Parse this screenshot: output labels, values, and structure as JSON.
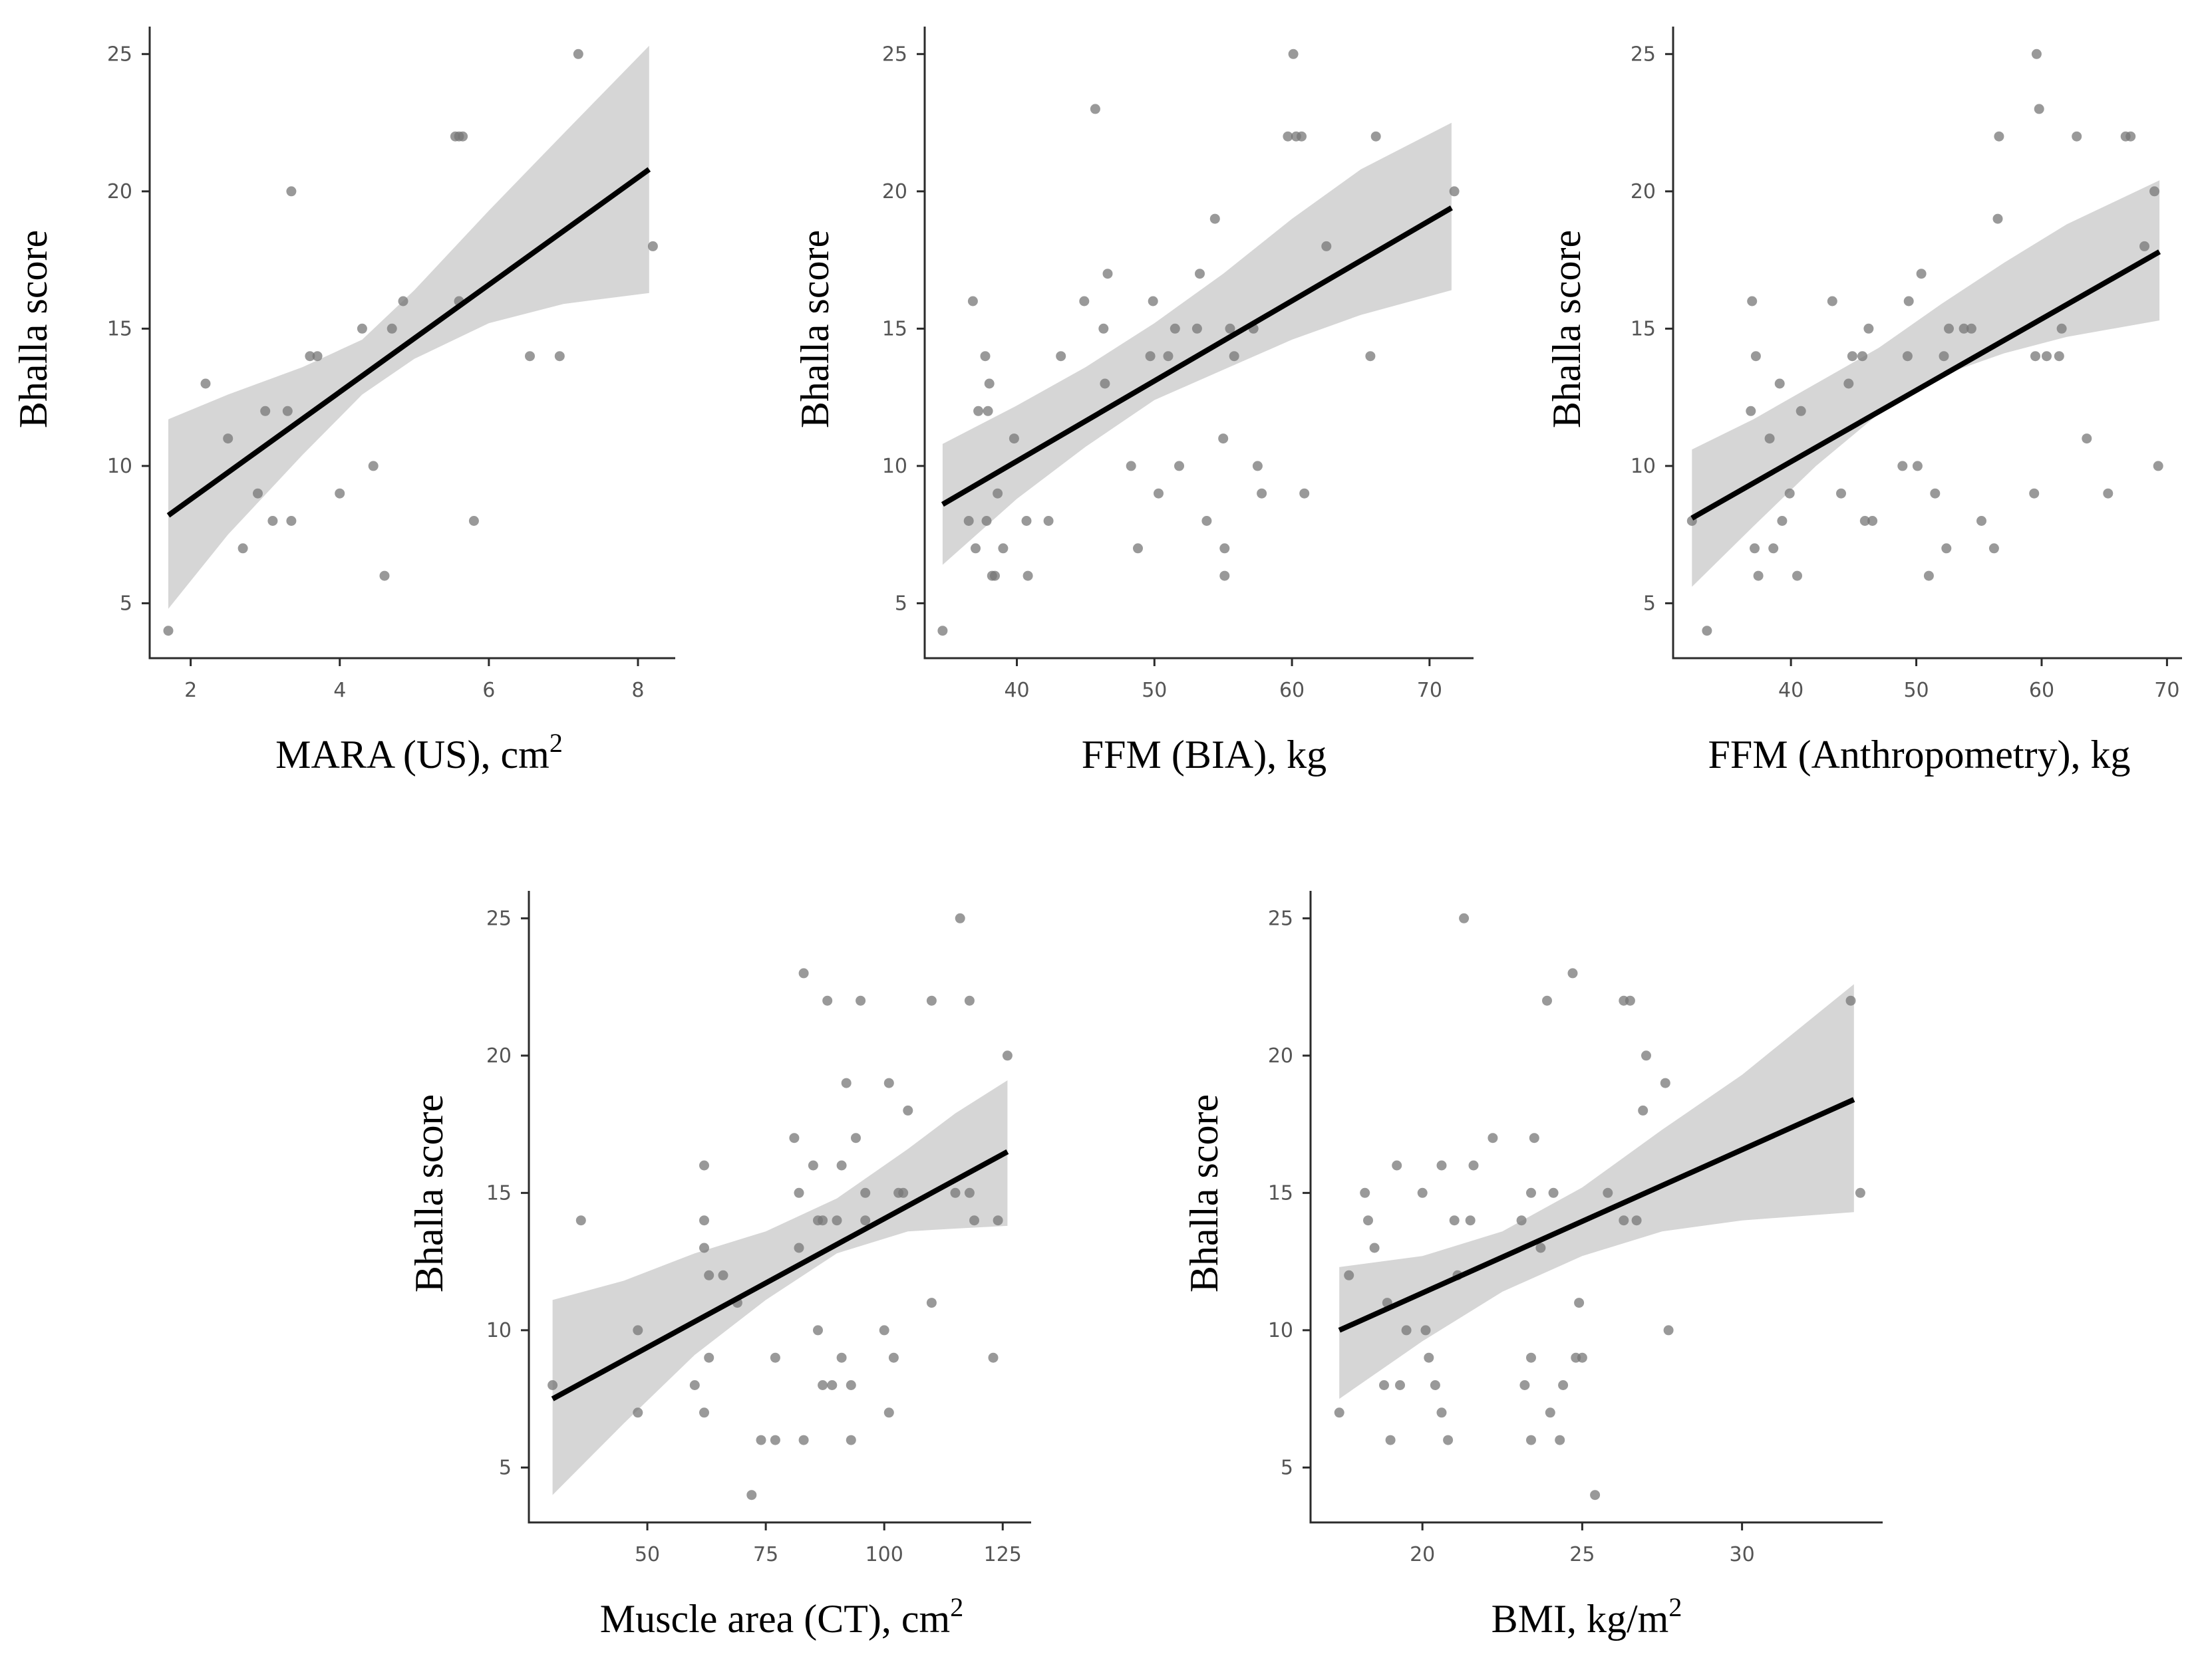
{
  "figure_colors": {
    "point": "#777777",
    "line": "#000000",
    "band": "#d6d6d6",
    "axis": "#2b2b2b"
  },
  "chart_data": [
    {
      "id": "mara",
      "type": "scatter",
      "xlabel": "MARA (US), cm",
      "xlabel_sup": "2",
      "ylabel": "Bhalla score",
      "xlim": [
        1.45,
        8.5
      ],
      "ylim": [
        3,
        26
      ],
      "xticks": [
        2,
        4,
        6,
        8
      ],
      "yticks": [
        5,
        10,
        15,
        20,
        25
      ],
      "points": [
        [
          1.7,
          4
        ],
        [
          2.2,
          13
        ],
        [
          2.5,
          11
        ],
        [
          2.7,
          7
        ],
        [
          2.9,
          9
        ],
        [
          3.0,
          12
        ],
        [
          3.1,
          8
        ],
        [
          3.3,
          12
        ],
        [
          3.35,
          8
        ],
        [
          3.35,
          20
        ],
        [
          3.6,
          14
        ],
        [
          3.7,
          14
        ],
        [
          4.0,
          9
        ],
        [
          4.3,
          15
        ],
        [
          4.45,
          10
        ],
        [
          4.6,
          6
        ],
        [
          4.7,
          15
        ],
        [
          4.85,
          16
        ],
        [
          5.6,
          16
        ],
        [
          5.55,
          22
        ],
        [
          5.6,
          22
        ],
        [
          5.65,
          22
        ],
        [
          5.8,
          8
        ],
        [
          6.55,
          14
        ],
        [
          6.95,
          14
        ],
        [
          7.2,
          25
        ],
        [
          8.2,
          18
        ]
      ],
      "fit": {
        "x0": 1.7,
        "y0": 8.2,
        "x1": 8.15,
        "y1": 20.8
      },
      "band": [
        [
          1.7,
          4.8,
          11.7
        ],
        [
          2.5,
          7.5,
          12.6
        ],
        [
          3.5,
          10.4,
          13.6
        ],
        [
          4.3,
          12.6,
          14.6
        ],
        [
          5.0,
          13.9,
          16.4
        ],
        [
          6.0,
          15.2,
          19.3
        ],
        [
          7.0,
          15.9,
          22.1
        ],
        [
          8.15,
          16.3,
          25.3
        ]
      ]
    },
    {
      "id": "ffm-bia",
      "type": "scatter",
      "xlabel": "FFM (BIA), kg",
      "xlabel_sup": "",
      "ylabel": "Bhalla score",
      "xlim": [
        33.3,
        73.2
      ],
      "ylim": [
        3,
        26
      ],
      "xticks": [
        40,
        50,
        60,
        70
      ],
      "yticks": [
        5,
        10,
        15,
        20,
        25
      ],
      "points": [
        [
          34.6,
          4
        ],
        [
          36.5,
          8
        ],
        [
          36.8,
          16
        ],
        [
          37.0,
          7
        ],
        [
          37.2,
          12
        ],
        [
          37.7,
          14
        ],
        [
          37.9,
          12
        ],
        [
          38.0,
          13
        ],
        [
          37.8,
          8
        ],
        [
          38.2,
          6
        ],
        [
          38.4,
          6
        ],
        [
          38.6,
          9
        ],
        [
          39.0,
          7
        ],
        [
          39.8,
          11
        ],
        [
          40.7,
          8
        ],
        [
          40.8,
          6
        ],
        [
          42.3,
          8
        ],
        [
          43.2,
          14
        ],
        [
          44.9,
          16
        ],
        [
          45.7,
          23
        ],
        [
          46.3,
          15
        ],
        [
          46.4,
          13
        ],
        [
          46.6,
          17
        ],
        [
          48.3,
          10
        ],
        [
          48.8,
          7
        ],
        [
          49.7,
          14
        ],
        [
          49.9,
          16
        ],
        [
          50.3,
          9
        ],
        [
          51.0,
          14
        ],
        [
          51.5,
          15
        ],
        [
          51.8,
          10
        ],
        [
          53.1,
          15
        ],
        [
          53.3,
          17
        ],
        [
          53.8,
          8
        ],
        [
          54.4,
          19
        ],
        [
          55.0,
          11
        ],
        [
          55.1,
          7
        ],
        [
          55.1,
          6
        ],
        [
          55.5,
          15
        ],
        [
          55.8,
          14
        ],
        [
          57.2,
          15
        ],
        [
          57.5,
          10
        ],
        [
          57.8,
          9
        ],
        [
          59.7,
          22
        ],
        [
          60.1,
          25
        ],
        [
          60.3,
          22
        ],
        [
          60.7,
          22
        ],
        [
          60.9,
          9
        ],
        [
          62.5,
          18
        ],
        [
          65.7,
          14
        ],
        [
          66.1,
          22
        ],
        [
          71.8,
          20
        ]
      ],
      "fit": {
        "x0": 34.6,
        "y0": 8.6,
        "x1": 71.6,
        "y1": 19.4
      },
      "band": [
        [
          34.6,
          6.4,
          10.8
        ],
        [
          40.0,
          8.8,
          12.2
        ],
        [
          45.0,
          10.7,
          13.6
        ],
        [
          50.0,
          12.4,
          15.2
        ],
        [
          55.0,
          13.5,
          17.0
        ],
        [
          60.0,
          14.6,
          19.0
        ],
        [
          65.0,
          15.5,
          20.8
        ],
        [
          71.6,
          16.4,
          22.5
        ]
      ]
    },
    {
      "id": "ffm-anthro",
      "type": "scatter",
      "xlabel": "FFM (Anthropometry), kg",
      "xlabel_sup": "",
      "ylabel": "Bhalla score",
      "xlim": [
        30.6,
        71.2
      ],
      "ylim": [
        3,
        26
      ],
      "xticks": [
        40,
        50,
        60,
        70
      ],
      "yticks": [
        5,
        10,
        15,
        20,
        25
      ],
      "points": [
        [
          32.1,
          8
        ],
        [
          33.3,
          4
        ],
        [
          36.8,
          12
        ],
        [
          36.9,
          16
        ],
        [
          37.1,
          7
        ],
        [
          37.2,
          14
        ],
        [
          37.4,
          6
        ],
        [
          38.3,
          11
        ],
        [
          38.6,
          7
        ],
        [
          39.1,
          13
        ],
        [
          39.3,
          8
        ],
        [
          39.9,
          9
        ],
        [
          40.5,
          6
        ],
        [
          40.8,
          12
        ],
        [
          43.3,
          16
        ],
        [
          44.0,
          9
        ],
        [
          44.6,
          13
        ],
        [
          44.9,
          14
        ],
        [
          45.7,
          14
        ],
        [
          45.9,
          8
        ],
        [
          46.2,
          15
        ],
        [
          46.5,
          8
        ],
        [
          48.9,
          10
        ],
        [
          49.3,
          14
        ],
        [
          49.4,
          16
        ],
        [
          50.1,
          10
        ],
        [
          50.4,
          17
        ],
        [
          51.0,
          6
        ],
        [
          51.5,
          9
        ],
        [
          52.2,
          14
        ],
        [
          52.4,
          7
        ],
        [
          52.6,
          15
        ],
        [
          53.8,
          15
        ],
        [
          54.4,
          15
        ],
        [
          55.2,
          8
        ],
        [
          56.2,
          7
        ],
        [
          56.5,
          19
        ],
        [
          56.6,
          22
        ],
        [
          59.4,
          9
        ],
        [
          59.5,
          14
        ],
        [
          59.6,
          25
        ],
        [
          59.8,
          23
        ],
        [
          60.4,
          14
        ],
        [
          61.6,
          15
        ],
        [
          61.4,
          14
        ],
        [
          62.8,
          22
        ],
        [
          63.6,
          11
        ],
        [
          65.3,
          9
        ],
        [
          66.7,
          22
        ],
        [
          67.1,
          22
        ],
        [
          68.2,
          18
        ],
        [
          69.0,
          20
        ],
        [
          69.3,
          10
        ]
      ],
      "fit": {
        "x0": 32.1,
        "y0": 8.1,
        "x1": 69.4,
        "y1": 17.8
      },
      "band": [
        [
          32.1,
          5.6,
          10.6
        ],
        [
          37.0,
          7.8,
          11.7
        ],
        [
          42.0,
          10.0,
          13.0
        ],
        [
          47.0,
          11.9,
          14.3
        ],
        [
          52.0,
          13.3,
          15.9
        ],
        [
          57.0,
          14.1,
          17.4
        ],
        [
          62.0,
          14.7,
          18.8
        ],
        [
          69.4,
          15.3,
          20.4
        ]
      ]
    },
    {
      "id": "muscle-ct",
      "type": "scatter",
      "xlabel": "Muscle area (CT), cm",
      "xlabel_sup": "2",
      "ylabel": "Bhalla score",
      "xlim": [
        25,
        131
      ],
      "ylim": [
        3,
        26
      ],
      "xticks": [
        50,
        75,
        100,
        125
      ],
      "yticks": [
        5,
        10,
        15,
        20,
        25
      ],
      "points": [
        [
          30,
          8
        ],
        [
          36,
          14
        ],
        [
          48,
          10
        ],
        [
          48,
          7
        ],
        [
          60,
          8
        ],
        [
          62,
          13
        ],
        [
          62,
          14
        ],
        [
          62,
          7
        ],
        [
          62,
          16
        ],
        [
          63,
          9
        ],
        [
          63,
          12
        ],
        [
          66,
          12
        ],
        [
          69,
          11
        ],
        [
          72,
          4
        ],
        [
          74,
          6
        ],
        [
          77,
          6
        ],
        [
          77,
          9
        ],
        [
          81,
          17
        ],
        [
          82,
          13
        ],
        [
          82,
          15
        ],
        [
          83,
          6
        ],
        [
          83,
          23
        ],
        [
          85,
          16
        ],
        [
          86,
          10
        ],
        [
          86,
          14
        ],
        [
          87,
          14
        ],
        [
          87,
          8
        ],
        [
          88,
          22
        ],
        [
          89,
          8
        ],
        [
          90,
          14
        ],
        [
          91,
          9
        ],
        [
          91,
          16
        ],
        [
          92,
          19
        ],
        [
          93,
          6
        ],
        [
          93,
          8
        ],
        [
          94,
          17
        ],
        [
          95,
          22
        ],
        [
          96,
          15
        ],
        [
          96,
          14
        ],
        [
          100,
          10
        ],
        [
          101,
          7
        ],
        [
          101,
          19
        ],
        [
          102,
          9
        ],
        [
          103,
          15
        ],
        [
          104,
          15
        ],
        [
          105,
          18
        ],
        [
          110,
          22
        ],
        [
          110,
          11
        ],
        [
          115,
          15
        ],
        [
          116,
          25
        ],
        [
          118,
          22
        ],
        [
          118,
          15
        ],
        [
          119,
          14
        ],
        [
          123,
          9
        ],
        [
          124,
          14
        ],
        [
          126,
          20
        ]
      ],
      "fit": {
        "x0": 30,
        "y0": 7.5,
        "x1": 126,
        "y1": 16.5
      },
      "band": [
        [
          30,
          4.0,
          11.1
        ],
        [
          45,
          6.6,
          11.8
        ],
        [
          60,
          9.1,
          12.8
        ],
        [
          75,
          11.1,
          13.6
        ],
        [
          90,
          12.8,
          14.8
        ],
        [
          105,
          13.6,
          16.6
        ],
        [
          115,
          13.7,
          17.9
        ],
        [
          126,
          13.8,
          19.1
        ]
      ]
    },
    {
      "id": "bmi",
      "type": "scatter",
      "xlabel": "BMI, kg/m",
      "xlabel_sup": "2",
      "ylabel": "Bhalla score",
      "xlim": [
        16.5,
        34.4
      ],
      "ylim": [
        3,
        26
      ],
      "xticks": [
        20,
        25,
        30
      ],
      "yticks": [
        5,
        10,
        15,
        20,
        25
      ],
      "points": [
        [
          17.4,
          7
        ],
        [
          17.7,
          12
        ],
        [
          18.2,
          15
        ],
        [
          18.3,
          14
        ],
        [
          18.5,
          13
        ],
        [
          18.8,
          8
        ],
        [
          18.9,
          11
        ],
        [
          19.0,
          6
        ],
        [
          19.2,
          16
        ],
        [
          19.3,
          8
        ],
        [
          19.5,
          10
        ],
        [
          20.0,
          15
        ],
        [
          20.1,
          10
        ],
        [
          20.2,
          9
        ],
        [
          20.4,
          8
        ],
        [
          20.6,
          7
        ],
        [
          20.6,
          16
        ],
        [
          20.8,
          6
        ],
        [
          21.0,
          14
        ],
        [
          21.1,
          12
        ],
        [
          21.3,
          25
        ],
        [
          21.5,
          14
        ],
        [
          21.6,
          16
        ],
        [
          22.2,
          17
        ],
        [
          23.1,
          14
        ],
        [
          23.2,
          8
        ],
        [
          23.4,
          9
        ],
        [
          23.4,
          15
        ],
        [
          23.4,
          6
        ],
        [
          23.5,
          17
        ],
        [
          23.7,
          13
        ],
        [
          23.9,
          22
        ],
        [
          24.0,
          7
        ],
        [
          24.1,
          15
        ],
        [
          24.3,
          6
        ],
        [
          24.4,
          8
        ],
        [
          24.7,
          23
        ],
        [
          24.8,
          9
        ],
        [
          24.9,
          11
        ],
        [
          25.0,
          9
        ],
        [
          25.4,
          4
        ],
        [
          25.8,
          15
        ],
        [
          26.3,
          14
        ],
        [
          26.3,
          22
        ],
        [
          26.5,
          22
        ],
        [
          26.7,
          14
        ],
        [
          26.9,
          18
        ],
        [
          27.0,
          20
        ],
        [
          27.6,
          19
        ],
        [
          27.7,
          10
        ],
        [
          33.4,
          22
        ],
        [
          33.7,
          15
        ]
      ],
      "fit": {
        "x0": 17.4,
        "y0": 10.0,
        "x1": 33.5,
        "y1": 18.4
      },
      "band": [
        [
          17.4,
          7.5,
          12.3
        ],
        [
          20.0,
          9.6,
          12.7
        ],
        [
          22.5,
          11.4,
          13.6
        ],
        [
          25.0,
          12.7,
          15.2
        ],
        [
          27.5,
          13.6,
          17.3
        ],
        [
          30.0,
          14.0,
          19.3
        ],
        [
          33.5,
          14.3,
          22.6
        ]
      ]
    }
  ]
}
